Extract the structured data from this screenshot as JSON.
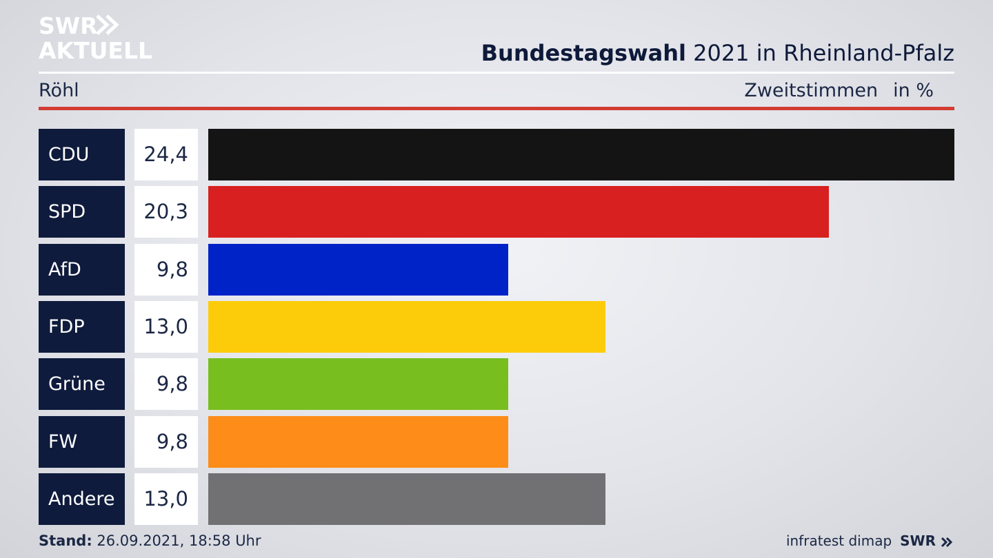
{
  "brand": {
    "line1": "SWR",
    "line2": "AKTUELL"
  },
  "header": {
    "title_strong": "Bundestagswahl",
    "title_rest": "2021 in Rheinland-Pfalz",
    "subtitle": "Röhl",
    "metric": "Zweitstimmen",
    "unit": "in %"
  },
  "chart_data": {
    "type": "bar",
    "orientation": "horizontal",
    "title": "Bundestagswahl 2021 in Rheinland-Pfalz",
    "subtitle": "Röhl",
    "xlabel": "Zweitstimmen in %",
    "categories": [
      "CDU",
      "SPD",
      "AfD",
      "FDP",
      "Grüne",
      "FW",
      "Andere"
    ],
    "values": [
      24.4,
      20.3,
      9.8,
      13.0,
      9.8,
      9.8,
      13.0
    ],
    "labels": [
      "24,4",
      "20,3",
      "9,8",
      "13,0",
      "9,8",
      "9,8",
      "13,0"
    ],
    "colors": [
      "#141414",
      "#d82020",
      "#0023c8",
      "#fccc0a",
      "#78be1e",
      "#fd8c18",
      "#717173"
    ],
    "xlim": [
      0,
      24.4
    ],
    "grid": false,
    "legend": "none"
  },
  "footer": {
    "stand_label": "Stand:",
    "stand_value": "26.09.2021, 18:58 Uhr",
    "source": "infratest dimap",
    "brand": "SWR"
  }
}
